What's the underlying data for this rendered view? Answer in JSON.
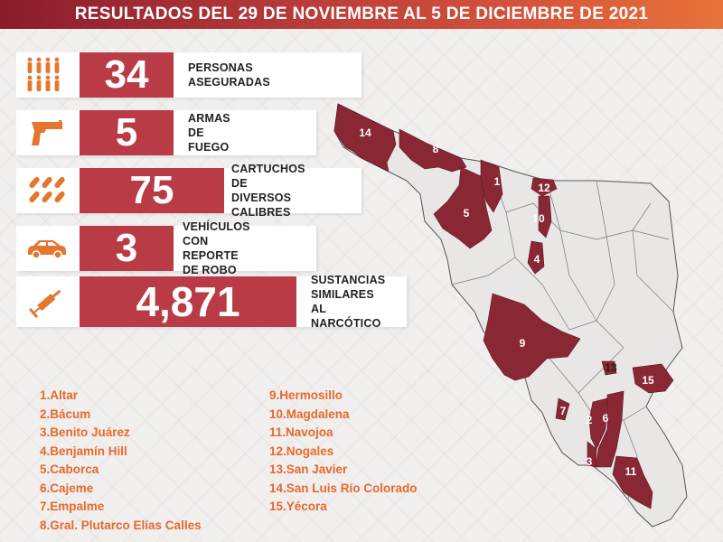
{
  "header": {
    "title": "RESULTADOS DEL 29 DE NOVIEMBRE AL 5 DE DICIEMBRE DE 2021"
  },
  "stats": [
    {
      "icon": "people-icon",
      "value": "34",
      "label_lines": [
        "PERSONAS ASEGURADAS"
      ]
    },
    {
      "icon": "pistol-icon",
      "value": "5",
      "label_lines": [
        "ARMAS DE FUEGO"
      ]
    },
    {
      "icon": "cartridges-icon",
      "value": "75",
      "label_lines": [
        "CARTUCHOS DE",
        "DIVERSOS CALIBRES"
      ]
    },
    {
      "icon": "car-icon",
      "value": "3",
      "label_lines": [
        "VEHÍCULOS CON",
        "REPORTE DE ROBO"
      ]
    },
    {
      "icon": "syringe-icon",
      "value": "4,871",
      "label_lines": [
        "SUSTANCIAS",
        "SIMILARES AL",
        "NARCÓTICO"
      ]
    }
  ],
  "legend_left": [
    "1.Altar",
    "2.Bácum",
    "3.Benito Juárez",
    "4.Benjamín Hill",
    "5.Caborca",
    "6.Cajeme",
    "7.Empalme",
    "8.Gral. Plutarco Elías Calles"
  ],
  "legend_right": [
    "9.Hermosillo",
    "10.Magdalena",
    "11.Navojoa",
    "12.Nogales",
    "13.San Javier",
    "14.San Luis Río Colorado",
    "15.Yécora"
  ],
  "map": {
    "labels": [
      "14",
      "8",
      "1",
      "12",
      "10",
      "5",
      "4",
      "9",
      "13",
      "15",
      "7",
      "2",
      "6",
      "3",
      "11"
    ]
  },
  "colors": {
    "accent": "#b83b46",
    "map_highlight": "#8a2735",
    "map_base": "#e9e6e6",
    "legend_text": "#e56a2c"
  }
}
